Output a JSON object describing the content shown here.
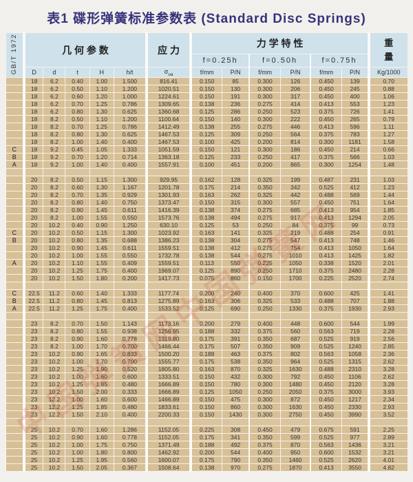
{
  "page": {
    "title": "表1 碟形弹簧标准参数表 (Standard Disc Springs)"
  },
  "standard_label": "GB/T 1972",
  "colors": {
    "header_bg": "#cfe1eb",
    "cell_bg": "#d7bf96",
    "title_text": "#37327c",
    "watermark": "#c23b2e"
  },
  "header": {
    "groups": {
      "geometry": "几 何 参 数",
      "stress": "应 力",
      "mechanical": "力 学 特 性",
      "weight_top": "重",
      "weight_bottom": "量"
    },
    "deflections": [
      "f=0.25h",
      "f=0.50h",
      "f=0.75h"
    ],
    "sigma": {
      "main": "σ",
      "sub": "oa"
    },
    "columns": [
      "D",
      "d",
      "t",
      "H",
      "h/t",
      "σoa",
      "f/mm",
      "P/N",
      "f/mm",
      "P/N",
      "f/mm",
      "P/N",
      "Kg/1000"
    ]
  },
  "watermark": {
    "text": "中国弹簧网中国弹簧网"
  },
  "table": {
    "sections": [
      {
        "rows": [
          [
            "",
            "18",
            "6.2",
            "0.40",
            "1.00",
            "1.500",
            "816.41",
            "0.150",
            "85",
            "0.300",
            "126",
            "0.450",
            "139",
            "0.70"
          ],
          [
            "",
            "18",
            "6.2",
            "0.50",
            "1.10",
            "1.200",
            "1020.51",
            "0.150",
            "130",
            "0.300",
            "206",
            "0.450",
            "245",
            "0.88"
          ],
          [
            "",
            "18",
            "6.2",
            "0.60",
            "1.20",
            "1.000",
            "1224.61",
            "0.150",
            "191",
            "0.300",
            "317",
            "0.450",
            "400",
            "1.06"
          ],
          [
            "",
            "18",
            "6.2",
            "0.70",
            "1.25",
            "0.786",
            "1309.65",
            "0.138",
            "236",
            "0.275",
            "414",
            "0.413",
            "553",
            "1.23"
          ],
          [
            "",
            "18",
            "6.2",
            "0.80",
            "1.30",
            "0.625",
            "1360.68",
            "0.125",
            "286",
            "0.250",
            "523",
            "0.375",
            "726",
            "1.41"
          ],
          [
            "",
            "18",
            "8.2",
            "0.50",
            "1.10",
            "1.200",
            "1100.64",
            "0.150",
            "140",
            "0.300",
            "222",
            "0.450",
            "265",
            "0.79"
          ],
          [
            "",
            "18",
            "8.2",
            "0.70",
            "1.25",
            "0.786",
            "1412.49",
            "0.138",
            "255",
            "0.275",
            "446",
            "0.413",
            "596",
            "1.11"
          ],
          [
            "",
            "18",
            "8.2",
            "0.80",
            "1.30",
            "0.625",
            "1467.53",
            "0.125",
            "309",
            "0.250",
            "564",
            "0.375",
            "783",
            "1.27"
          ],
          [
            "",
            "18",
            "8.2",
            "1.00",
            "1.40",
            "0.400",
            "1467.53",
            "0.100",
            "425",
            "0.200",
            "814",
            "0.300",
            "1181",
            "1.58"
          ],
          [
            "C",
            "18",
            "9.2",
            "0.45",
            "1.05",
            "1.333",
            "1051.59",
            "0.150",
            "121",
            "0.300",
            "186",
            "0.450",
            "214",
            "0.66"
          ],
          [
            "B",
            "18",
            "9.2",
            "0.70",
            "1.20",
            "0.714",
            "1363.18",
            "0.125",
            "233",
            "0.250",
            "417",
            "0.375",
            "566",
            "1.03"
          ],
          [
            "A",
            "18",
            "9.2",
            "1.00",
            "1.40",
            "0.400",
            "1557.91",
            "0.100",
            "451",
            "0.200",
            "865",
            "0.300",
            "1254",
            "1.48"
          ]
        ]
      },
      {
        "rows": [
          [
            "",
            "20",
            "8.2",
            "0.50",
            "1.15",
            "1.300",
            "929.95",
            "0.162",
            "128",
            "0.325",
            "199",
            "0.487",
            "231",
            "1.03"
          ],
          [
            "",
            "20",
            "8.2",
            "0.60",
            "1.30",
            "1.167",
            "1201.78",
            "0.175",
            "214",
            "0.350",
            "342",
            "0.525",
            "412",
            "1.23"
          ],
          [
            "",
            "20",
            "8.2",
            "0.70",
            "1.35",
            "0.929",
            "1301.93",
            "0.163",
            "262",
            "0.325",
            "442",
            "0.488",
            "569",
            "1.44"
          ],
          [
            "",
            "20",
            "8.2",
            "0.80",
            "1.40",
            "0.750",
            "1373.47",
            "0.150",
            "315",
            "0.300",
            "557",
            "0.450",
            "751",
            "1.64"
          ],
          [
            "",
            "20",
            "8.2",
            "0.90",
            "1.45",
            "0.611",
            "1416.39",
            "0.138",
            "374",
            "0.275",
            "685",
            "0.413",
            "954",
            "1.85"
          ],
          [
            "",
            "20",
            "8.2",
            "1.00",
            "1.55",
            "0.550",
            "1573.76",
            "0.138",
            "494",
            "0.275",
            "917",
            "0.413",
            "1294",
            "2.05"
          ],
          [
            "",
            "20",
            "10.2",
            "0.40",
            "0.90",
            "1.250",
            "630.10",
            "0.125",
            "53",
            "0.250",
            "84",
            "0.375",
            "99",
            "0.73"
          ],
          [
            "C",
            "20",
            "10.2",
            "0.50",
            "1.15",
            "1.300",
            "1023.92",
            "0.163",
            "141",
            "0.325",
            "219",
            "0.488",
            "254",
            "0.91"
          ],
          [
            "B",
            "20",
            "10.2",
            "0.80",
            "1.35",
            "0.688",
            "1386.23",
            "0.138",
            "304",
            "0.275",
            "547",
            "0.413",
            "748",
            "1.46"
          ],
          [
            "",
            "20",
            "10.2",
            "0.90",
            "1.45",
            "0.611",
            "1559.51",
            "0.138",
            "412",
            "0.275",
            "754",
            "0.413",
            "1050",
            "1.64"
          ],
          [
            "",
            "20",
            "10.2",
            "1.00",
            "1.55",
            "0.550",
            "1732.78",
            "0.138",
            "544",
            "0.275",
            "1010",
            "0.413",
            "1425",
            "1.82"
          ],
          [
            "A",
            "20",
            "10.2",
            "1.10",
            "1.55",
            "0.409",
            "1559.51",
            "0.113",
            "550",
            "0.225",
            "1050",
            "0.338",
            "1520",
            "2.01"
          ],
          [
            "",
            "20",
            "10.2",
            "1.25",
            "1.75",
            "0.400",
            "1969.07",
            "0.125",
            "890",
            "0.250",
            "1710",
            "0.375",
            "2480",
            "2.28"
          ],
          [
            "",
            "20",
            "10.2",
            "1.50",
            "1.80",
            "0.200",
            "1417.73",
            "0.075",
            "860",
            "0.150",
            "1700",
            "0.225",
            "2520",
            "2.74"
          ]
        ]
      },
      {
        "rows": [
          [
            "C",
            "22.5",
            "11.2",
            "0.60",
            "1.40",
            "1.333",
            "1177.74",
            "0.200",
            "240",
            "0.400",
            "370",
            "0.600",
            "425",
            "1.41"
          ],
          [
            "B",
            "22.5",
            "11.2",
            "0.80",
            "1.45",
            "0.813",
            "1275.89",
            "0.163",
            "306",
            "0.325",
            "533",
            "0.488",
            "707",
            "1.88"
          ],
          [
            "A",
            "22.5",
            "11.2",
            "1.25",
            "1.75",
            "0.400",
            "1533.52",
            "0.125",
            "690",
            "0.250",
            "1330",
            "0.375",
            "1930",
            "2.93"
          ]
        ]
      },
      {
        "rows": [
          [
            "",
            "23",
            "8.2",
            "0.70",
            "1.50",
            "1.143",
            "1173.16",
            "0.200",
            "279",
            "0.400",
            "448",
            "0.600",
            "544",
            "1.99"
          ],
          [
            "",
            "23",
            "8.2",
            "0.80",
            "1.55",
            "0.938",
            "1256.95",
            "0.188",
            "332",
            "0.375",
            "560",
            "0.563",
            "719",
            "2.28"
          ],
          [
            "",
            "23",
            "8.2",
            "0.90",
            "1.60",
            "0.778",
            "1319.80",
            "0.175",
            "391",
            "0.350",
            "687",
            "0.525",
            "919",
            "2.56"
          ],
          [
            "",
            "23",
            "8.2",
            "1.00",
            "1.70",
            "0.700",
            "1466.44",
            "0.175",
            "507",
            "0.350",
            "909",
            "0.525",
            "1240",
            "2.85"
          ],
          [
            "",
            "23",
            "10.2",
            "0.90",
            "1.65",
            "0.833",
            "1500.20",
            "0.188",
            "463",
            "0.375",
            "802",
            "0.563",
            "1058",
            "2.36"
          ],
          [
            "",
            "23",
            "10.2",
            "1.00",
            "1.70",
            "0.700",
            "1555.77",
            "0.175",
            "538",
            "0.350",
            "964",
            "0.525",
            "1315",
            "2.62"
          ],
          [
            "",
            "23",
            "10.2",
            "1.25",
            "1.90",
            "0.520",
            "1805.80",
            "0.163",
            "870",
            "0.325",
            "1630",
            "0.488",
            "2310",
            "3.28"
          ],
          [
            "",
            "23",
            "10.2",
            "1.00",
            "1.60",
            "0.600",
            "1333.51",
            "0.150",
            "432",
            "0.300",
            "792",
            "0.450",
            "1106",
            "2.62"
          ],
          [
            "",
            "23",
            "10.2",
            "1.25",
            "1.85",
            "0.480",
            "1666.89",
            "0.150",
            "780",
            "0.300",
            "1480",
            "0.450",
            "2120",
            "3.28"
          ],
          [
            "",
            "23",
            "10.2",
            "1.50",
            "2.00",
            "0.333",
            "1666.89",
            "0.125",
            "1050",
            "0.250",
            "2050",
            "0.375",
            "3000",
            "3.93"
          ],
          [
            "",
            "23",
            "12.2",
            "1.00",
            "1.60",
            "0.600",
            "1466.89",
            "0.150",
            "475",
            "0.300",
            "872",
            "0.450",
            "1217",
            "2.34"
          ],
          [
            "",
            "23",
            "12.2",
            "1.25",
            "1.85",
            "0.480",
            "1833.61",
            "0.150",
            "860",
            "0.300",
            "1630",
            "0.450",
            "2330",
            "2.93"
          ],
          [
            "",
            "23",
            "12.2",
            "1.50",
            "2.10",
            "0.400",
            "2200.33",
            "0.150",
            "1430",
            "0.300",
            "2750",
            "0.450",
            "3990",
            "3.52"
          ]
        ]
      },
      {
        "rows": [
          [
            "",
            "25",
            "10.2",
            "0.70",
            "1.60",
            "1.286",
            "1152.05",
            "0.225",
            "308",
            "0.450",
            "479",
            "0.675",
            "591",
            "2.25"
          ],
          [
            "",
            "25",
            "10.2",
            "0.90",
            "1.60",
            "0.778",
            "1152.05",
            "0.175",
            "341",
            "0.350",
            "599",
            "0.525",
            "977",
            "2.89"
          ],
          [
            "",
            "25",
            "10.2",
            "1.00",
            "1.75",
            "0.750",
            "1371.49",
            "0.188",
            "492",
            "0.375",
            "870",
            "0.563",
            "1436",
            "3.21"
          ],
          [
            "",
            "25",
            "10.2",
            "1.00",
            "1.80",
            "0.800",
            "1462.92",
            "0.200",
            "544",
            "0.400",
            "950",
            "0.600",
            "1532",
            "3.21"
          ],
          [
            "",
            "25",
            "10.2",
            "1.25",
            "1.95",
            "0.560",
            "1600.07",
            "0.175",
            "790",
            "0.350",
            "1460",
            "0.525",
            "2620",
            "4.01"
          ],
          [
            "",
            "25",
            "10.2",
            "1.50",
            "2.05",
            "0.367",
            "1508.64",
            "0.138",
            "970",
            "0.275",
            "1870",
            "0.413",
            "3550",
            "4.82"
          ]
        ]
      }
    ]
  }
}
